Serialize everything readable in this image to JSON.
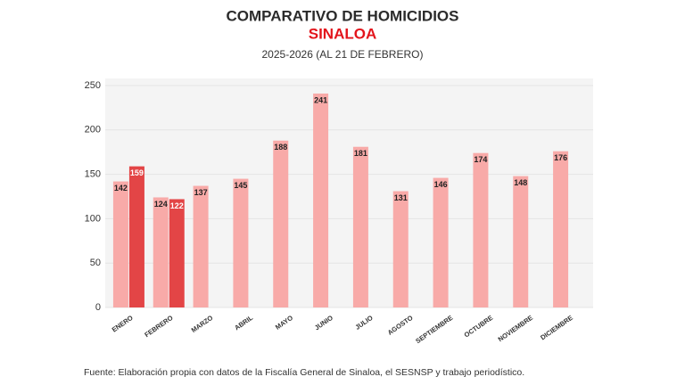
{
  "chart_data": {
    "type": "bar",
    "title": "COMPARATIVO DE HOMICIDIOS",
    "subtitle": "SINALOA",
    "period": "2025-2026 (AL 21 DE FEBRERO)",
    "source": "Fuente: Elaboración propia con datos de la Fiscalía General de Sinaloa, el SESNSP y trabajo periodístico.",
    "categories": [
      "ENERO",
      "FEBRERO",
      "MARZO",
      "ABRIL",
      "MAYO",
      "JUNIO",
      "JULIO",
      "AGOSTO",
      "SEPTIEMBRE",
      "OCTUBRE",
      "NOVIEMBRE",
      "DICIEMBRE"
    ],
    "series": [
      {
        "color": "#f8aaa8",
        "label_color": "#222222",
        "values": [
          142,
          124,
          137,
          145,
          188,
          241,
          181,
          131,
          146,
          174,
          148,
          176
        ]
      },
      {
        "color": "#e34546",
        "label_color": "#ffffff",
        "values": [
          159,
          122,
          null,
          null,
          null,
          null,
          null,
          null,
          null,
          null,
          null,
          null
        ]
      }
    ],
    "ylim": [
      0,
      250
    ],
    "yticks": [
      0,
      50,
      100,
      150,
      200,
      250
    ],
    "grid": true,
    "subtitle_color": "#e3141b"
  }
}
